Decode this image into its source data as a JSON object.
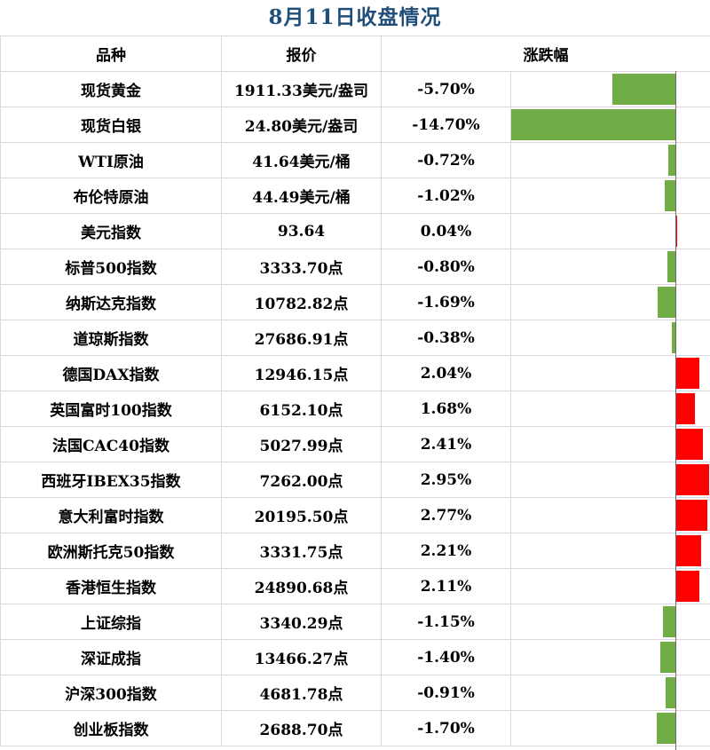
{
  "title": "8月11日收盘情况",
  "headers": {
    "name": "品种",
    "price": "报价",
    "change": "涨跌幅"
  },
  "colors": {
    "up": "#ff0000",
    "down": "#70ad47",
    "title": "#1f4e79"
  },
  "chart_data": {
    "type": "bar",
    "orientation": "horizontal",
    "columns": [
      "品种",
      "报价",
      "涨跌幅"
    ],
    "rows": [
      {
        "name": "现货黄金",
        "price": "1911.33美元/盎司",
        "change_label": "-5.70%",
        "change": -5.7
      },
      {
        "name": "现货白银",
        "price": "24.80美元/盎司",
        "change_label": "-14.70%",
        "change": -14.7
      },
      {
        "name": "WTI原油",
        "price": "41.64美元/桶",
        "change_label": "-0.72%",
        "change": -0.72
      },
      {
        "name": "布伦特原油",
        "price": "44.49美元/桶",
        "change_label": "-1.02%",
        "change": -1.02
      },
      {
        "name": "美元指数",
        "price": "93.64",
        "change_label": "0.04%",
        "change": 0.04
      },
      {
        "name": "标普500指数",
        "price": "3333.70点",
        "change_label": "-0.80%",
        "change": -0.8
      },
      {
        "name": "纳斯达克指数",
        "price": "10782.82点",
        "change_label": "-1.69%",
        "change": -1.69
      },
      {
        "name": "道琼斯指数",
        "price": "27686.91点",
        "change_label": "-0.38%",
        "change": -0.38
      },
      {
        "name": "德国DAX指数",
        "price": "12946.15点",
        "change_label": "2.04%",
        "change": 2.04
      },
      {
        "name": "英国富时100指数",
        "price": "6152.10点",
        "change_label": "1.68%",
        "change": 1.68
      },
      {
        "name": "法国CAC40指数",
        "price": "5027.99点",
        "change_label": "2.41%",
        "change": 2.41
      },
      {
        "name": "西班牙IBEX35指数",
        "price": "7262.00点",
        "change_label": "2.95%",
        "change": 2.95
      },
      {
        "name": "意大利富时指数",
        "price": "20195.50点",
        "change_label": "2.77%",
        "change": 2.77
      },
      {
        "name": "欧洲斯托克50指数",
        "price": "3331.75点",
        "change_label": "2.21%",
        "change": 2.21
      },
      {
        "name": "香港恒生指数",
        "price": "24890.68点",
        "change_label": "2.11%",
        "change": 2.11
      },
      {
        "name": "上证综指",
        "price": "3340.29点",
        "change_label": "-1.15%",
        "change": -1.15
      },
      {
        "name": "深证成指",
        "price": "13466.27点",
        "change_label": "-1.40%",
        "change": -1.4
      },
      {
        "name": "沪深300指数",
        "price": "4681.78点",
        "change_label": "-0.91%",
        "change": -0.91
      },
      {
        "name": "创业板指数",
        "price": "2688.70点",
        "change_label": "-1.70%",
        "change": -1.7
      }
    ],
    "xlim": [
      -14.7,
      2.95
    ],
    "grid": false,
    "legend": "none"
  }
}
